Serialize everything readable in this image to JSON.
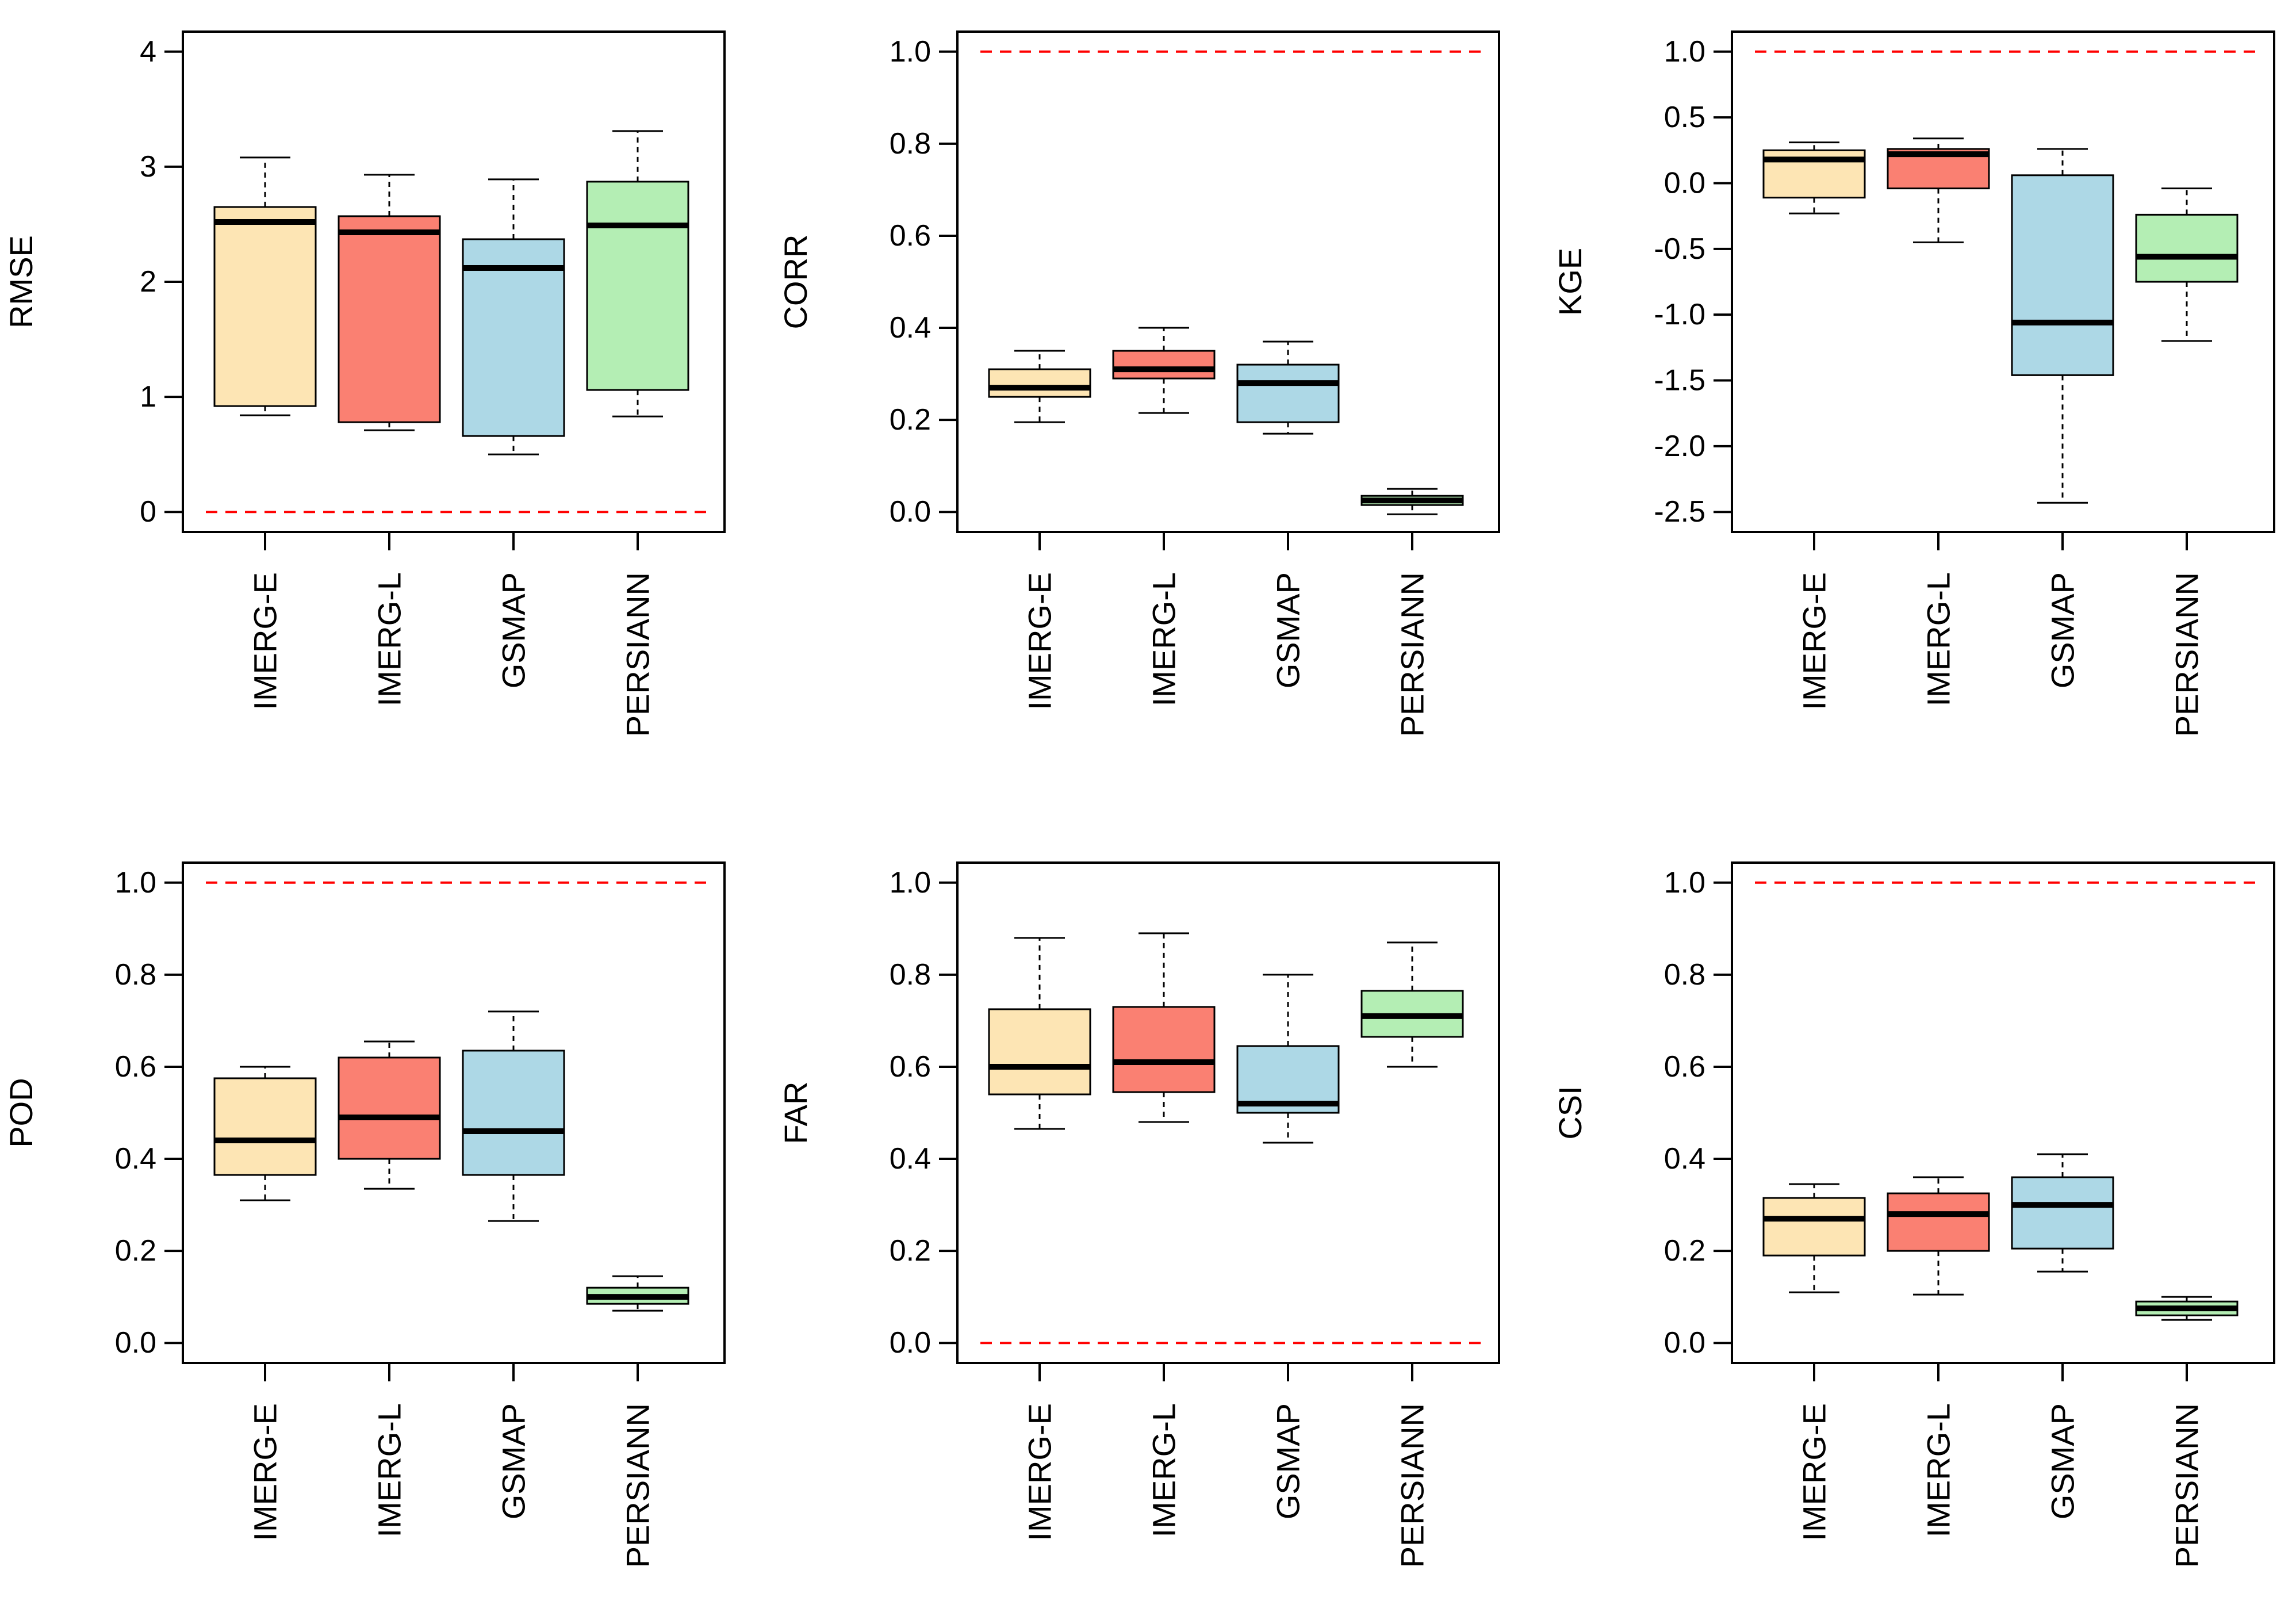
{
  "colors": {
    "IMERG-E": "#FDE5B4",
    "IMERG-L": "#FA8072",
    "GSMAP": "#ADD8E6",
    "PERSIANN": "#B4EEB4",
    "reference_line": "#FF0000"
  },
  "chart_data": [
    {
      "type": "boxplot",
      "ylabel": "RMSE",
      "categories": [
        "IMERG-E",
        "IMERG-L",
        "GSMAP",
        "PERSIANN"
      ],
      "ylim": [
        0,
        4
      ],
      "yticks": [
        0,
        1,
        2,
        3,
        4
      ],
      "tick_decimals": 0,
      "reference_line": 0,
      "boxes": [
        {
          "name": "IMERG-E",
          "min": 0.84,
          "q1": 0.92,
          "median": 2.52,
          "q3": 2.65,
          "max": 3.08
        },
        {
          "name": "IMERG-L",
          "min": 0.71,
          "q1": 0.78,
          "median": 2.43,
          "q3": 2.57,
          "max": 2.93
        },
        {
          "name": "GSMAP",
          "min": 0.5,
          "q1": 0.66,
          "median": 2.12,
          "q3": 2.37,
          "max": 2.89
        },
        {
          "name": "PERSIANN",
          "min": 0.83,
          "q1": 1.06,
          "median": 2.49,
          "q3": 2.87,
          "max": 3.31
        }
      ]
    },
    {
      "type": "boxplot",
      "ylabel": "CORR",
      "categories": [
        "IMERG-E",
        "IMERG-L",
        "GSMAP",
        "PERSIANN"
      ],
      "ylim": [
        0,
        1
      ],
      "yticks": [
        0,
        0.2,
        0.4,
        0.6,
        0.8,
        1.0
      ],
      "tick_decimals": 1,
      "reference_line": 1.0,
      "boxes": [
        {
          "name": "IMERG-E",
          "min": 0.195,
          "q1": 0.25,
          "median": 0.27,
          "q3": 0.31,
          "max": 0.35
        },
        {
          "name": "IMERG-L",
          "min": 0.215,
          "q1": 0.29,
          "median": 0.31,
          "q3": 0.35,
          "max": 0.4
        },
        {
          "name": "GSMAP",
          "min": 0.17,
          "q1": 0.195,
          "median": 0.28,
          "q3": 0.32,
          "max": 0.37
        },
        {
          "name": "PERSIANN",
          "min": -0.005,
          "q1": 0.015,
          "median": 0.025,
          "q3": 0.035,
          "max": 0.05
        }
      ]
    },
    {
      "type": "boxplot",
      "ylabel": "KGE",
      "categories": [
        "IMERG-E",
        "IMERG-L",
        "GSMAP",
        "PERSIANN"
      ],
      "ylim": [
        -2.5,
        1.0
      ],
      "yticks": [
        -2.5,
        -2.0,
        -1.5,
        -1.0,
        -0.5,
        0.0,
        0.5,
        1.0
      ],
      "tick_decimals": 1,
      "reference_line": 1.0,
      "boxes": [
        {
          "name": "IMERG-E",
          "min": -0.23,
          "q1": -0.11,
          "median": 0.18,
          "q3": 0.25,
          "max": 0.31
        },
        {
          "name": "IMERG-L",
          "min": -0.45,
          "q1": -0.04,
          "median": 0.22,
          "q3": 0.26,
          "max": 0.34
        },
        {
          "name": "GSMAP",
          "min": -2.43,
          "q1": -1.46,
          "median": -1.06,
          "q3": 0.06,
          "max": 0.26
        },
        {
          "name": "PERSIANN",
          "min": -1.2,
          "q1": -0.75,
          "median": -0.56,
          "q3": -0.24,
          "max": -0.04
        }
      ]
    },
    {
      "type": "boxplot",
      "ylabel": "POD",
      "categories": [
        "IMERG-E",
        "IMERG-L",
        "GSMAP",
        "PERSIANN"
      ],
      "ylim": [
        0,
        1
      ],
      "yticks": [
        0,
        0.2,
        0.4,
        0.6,
        0.8,
        1.0
      ],
      "tick_decimals": 1,
      "reference_line": 1.0,
      "boxes": [
        {
          "name": "IMERG-E",
          "min": 0.31,
          "q1": 0.365,
          "median": 0.44,
          "q3": 0.575,
          "max": 0.6
        },
        {
          "name": "IMERG-L",
          "min": 0.335,
          "q1": 0.4,
          "median": 0.49,
          "q3": 0.62,
          "max": 0.655
        },
        {
          "name": "GSMAP",
          "min": 0.265,
          "q1": 0.365,
          "median": 0.46,
          "q3": 0.635,
          "max": 0.72
        },
        {
          "name": "PERSIANN",
          "min": 0.07,
          "q1": 0.085,
          "median": 0.1,
          "q3": 0.12,
          "max": 0.145
        }
      ]
    },
    {
      "type": "boxplot",
      "ylabel": "FAR",
      "categories": [
        "IMERG-E",
        "IMERG-L",
        "GSMAP",
        "PERSIANN"
      ],
      "ylim": [
        0,
        1
      ],
      "yticks": [
        0,
        0.2,
        0.4,
        0.6,
        0.8,
        1.0
      ],
      "tick_decimals": 1,
      "reference_line": 0.0,
      "boxes": [
        {
          "name": "IMERG-E",
          "min": 0.465,
          "q1": 0.54,
          "median": 0.6,
          "q3": 0.725,
          "max": 0.88
        },
        {
          "name": "IMERG-L",
          "min": 0.48,
          "q1": 0.545,
          "median": 0.61,
          "q3": 0.73,
          "max": 0.89
        },
        {
          "name": "GSMAP",
          "min": 0.435,
          "q1": 0.5,
          "median": 0.52,
          "q3": 0.645,
          "max": 0.8
        },
        {
          "name": "PERSIANN",
          "min": 0.6,
          "q1": 0.665,
          "median": 0.71,
          "q3": 0.765,
          "max": 0.87
        }
      ]
    },
    {
      "type": "boxplot",
      "ylabel": "CSI",
      "categories": [
        "IMERG-E",
        "IMERG-L",
        "GSMAP",
        "PERSIANN"
      ],
      "ylim": [
        0,
        1
      ],
      "yticks": [
        0,
        0.2,
        0.4,
        0.6,
        0.8,
        1.0
      ],
      "tick_decimals": 1,
      "reference_line": 1.0,
      "boxes": [
        {
          "name": "IMERG-E",
          "min": 0.11,
          "q1": 0.19,
          "median": 0.27,
          "q3": 0.315,
          "max": 0.345
        },
        {
          "name": "IMERG-L",
          "min": 0.105,
          "q1": 0.2,
          "median": 0.28,
          "q3": 0.325,
          "max": 0.36
        },
        {
          "name": "GSMAP",
          "min": 0.155,
          "q1": 0.205,
          "median": 0.3,
          "q3": 0.36,
          "max": 0.41
        },
        {
          "name": "PERSIANN",
          "min": 0.05,
          "q1": 0.06,
          "median": 0.075,
          "q3": 0.09,
          "max": 0.1
        }
      ]
    }
  ]
}
